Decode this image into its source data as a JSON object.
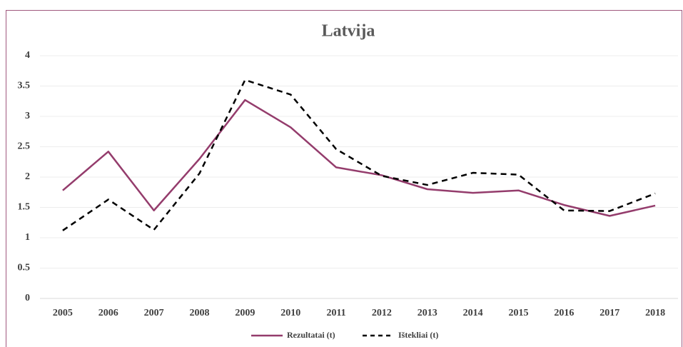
{
  "chart_data": {
    "type": "line",
    "title": "Latvija",
    "categories": [
      "2005",
      "2006",
      "2007",
      "2008",
      "2009",
      "2010",
      "2011",
      "2012",
      "2013",
      "2014",
      "2015",
      "2016",
      "2017",
      "2018"
    ],
    "series": [
      {
        "name": "Rezultatai (t)",
        "color": "#943c6c",
        "dash": false,
        "values": [
          1.78,
          2.42,
          1.45,
          2.3,
          3.27,
          2.82,
          2.16,
          2.03,
          1.8,
          1.74,
          1.78,
          1.54,
          1.36,
          1.53
        ]
      },
      {
        "name": "Ištekliai (t)",
        "color": "#000000",
        "dash": true,
        "values": [
          1.12,
          1.63,
          1.13,
          2.06,
          3.6,
          3.36,
          2.46,
          2.02,
          1.87,
          2.07,
          2.04,
          1.45,
          1.44,
          1.73
        ]
      }
    ],
    "ylim": [
      0,
      4
    ],
    "yticks": [
      0,
      0.5,
      1,
      1.5,
      2,
      2.5,
      3,
      3.5,
      4
    ],
    "grid": true,
    "legend": "bottom"
  }
}
